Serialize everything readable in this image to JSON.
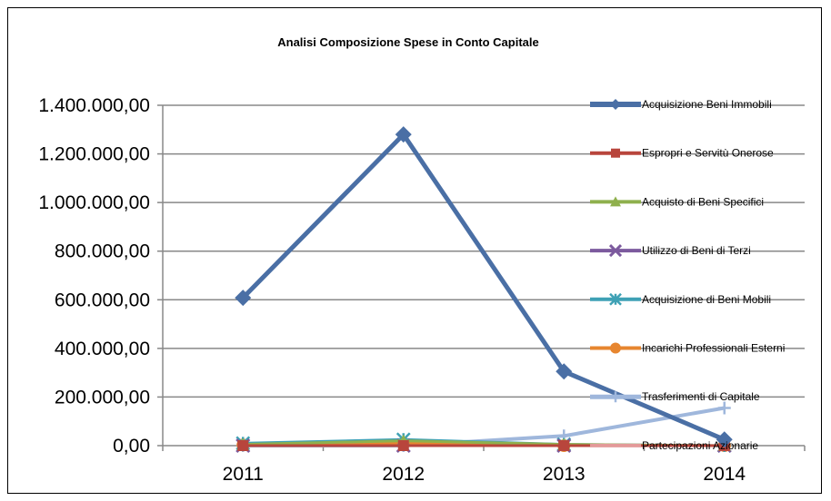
{
  "chart_data": {
    "type": "line",
    "title": "Analisi Composizione Spese in Conto Capitale",
    "xlabel": "",
    "ylabel": "",
    "categories": [
      "2011",
      "2012",
      "2013",
      "2014"
    ],
    "ylim": [
      0,
      1400000
    ],
    "yticks": [
      "0,00",
      "200.000,00",
      "400.000,00",
      "600.000,00",
      "800.000,00",
      "1.000.000,00",
      "1.200.000,00",
      "1.400.000,00"
    ],
    "ytick_values": [
      0,
      200000,
      400000,
      600000,
      800000,
      1000000,
      1200000,
      1400000
    ],
    "grid": true,
    "legend_position": "right",
    "series": [
      {
        "name": "Acquisizione Beni Immobili",
        "values": [
          608000,
          1280000,
          305000,
          25000
        ],
        "color": "#4a6fa5",
        "marker": "diamond",
        "width": 5
      },
      {
        "name": "Espropri e Servitù Onerose",
        "values": [
          0,
          0,
          0,
          0
        ],
        "color": "#b8453c",
        "marker": "square",
        "width": 3
      },
      {
        "name": "Acquisto di Beni Specifici",
        "values": [
          5000,
          20000,
          5000,
          0
        ],
        "color": "#8fb04d",
        "marker": "triangle",
        "width": 3
      },
      {
        "name": "Utilizzo di Beni di Terzi",
        "values": [
          0,
          0,
          0,
          0
        ],
        "color": "#7c5a9e",
        "marker": "x",
        "width": 3
      },
      {
        "name": "Acquisizione di Beni Mobili",
        "values": [
          10000,
          25000,
          5000,
          0
        ],
        "color": "#3ea1b5",
        "marker": "star",
        "width": 3
      },
      {
        "name": "Incarichi Professionali Esterni",
        "values": [
          3000,
          10000,
          0,
          0
        ],
        "color": "#e7862f",
        "marker": "circle",
        "width": 3
      },
      {
        "name": "Trasferimenti di Capitale",
        "values": [
          0,
          0,
          40000,
          155000
        ],
        "color": "#9fb7dc",
        "marker": "plus",
        "width": 4
      },
      {
        "name": "Partecipazioni Azionarie",
        "values": [
          0,
          0,
          0,
          0
        ],
        "color": "#e39a99",
        "marker": "none",
        "width": 3
      }
    ]
  }
}
